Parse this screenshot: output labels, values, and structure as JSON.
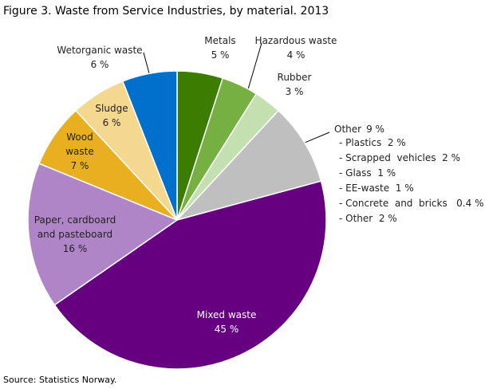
{
  "chart_data": {
    "type": "pie",
    "title": "Figure 3. Waste from Service Industries, by material. 2013",
    "categories": [
      "Metals",
      "Hazardous waste",
      "Rubber",
      "Other",
      "Mixed waste",
      "Paper, cardboard and pasteboard",
      "Wood waste",
      "Sludge",
      "Wetorganic waste"
    ],
    "values": [
      5,
      4,
      3,
      9,
      45,
      16,
      7,
      6,
      6
    ],
    "value_labels": [
      "5 %",
      "4 %",
      "3 %",
      "9 %",
      "45 %",
      "16 %",
      "7 %",
      "6 %",
      "6 %"
    ],
    "colors": [
      "#3a7d00",
      "#76b043",
      "#c5e0b0",
      "#bfbfbf",
      "#660080",
      "#b085c8",
      "#e8b020",
      "#f5d88f",
      "#0070cc"
    ],
    "other_breakdown": [
      "- Plastics  2 %",
      "- Scrapped  vehicles  2 %",
      "- Glass  1 %",
      "- EE-waste  1 %",
      "- Concrete  and  bricks   0.4 %",
      "- Other  2 %"
    ],
    "source": "Source: Statistics Norway."
  }
}
